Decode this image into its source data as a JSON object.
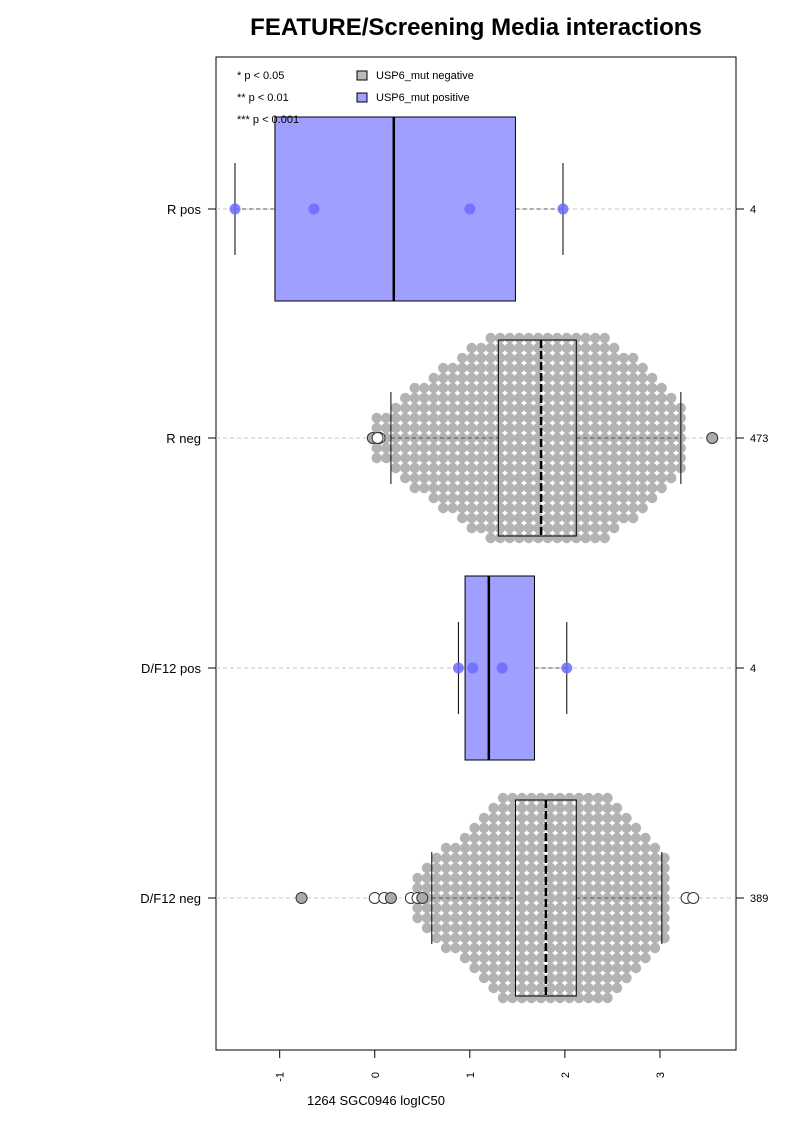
{
  "chart_data": {
    "type": "boxplot-beeswarm",
    "title": "FEATURE/Screening Media interactions",
    "xlabel": "1264 SGC0946 logIC50",
    "ylabel": "",
    "xlim": [
      -1.67,
      3.8
    ],
    "x_ticks": [
      -1,
      0,
      1,
      2,
      3
    ],
    "x_tick_labels": [
      "-1",
      "0",
      "1",
      "2",
      "3"
    ],
    "orientation": "horizontal",
    "grid": "dashed horizontal line through each group",
    "significance_legend": [
      "* p < 0.05",
      "** p < 0.01",
      "*** p < 0.001"
    ],
    "legend": [
      {
        "label": "USP6_mut negative",
        "color": "#bbbbbb"
      },
      {
        "label": "USP6_mut positive",
        "color": "#9f9fff"
      }
    ],
    "legend_position": "top-left",
    "groups": [
      {
        "label": "R pos",
        "count": "4",
        "mutation": "positive",
        "box": {
          "q1": -1.05,
          "median": 0.2,
          "q3": 1.48,
          "whisker_low": -1.47,
          "whisker_high": 1.98
        },
        "points": [
          -1.47,
          -0.64,
          1.0,
          1.98
        ],
        "outliers": []
      },
      {
        "label": "R neg",
        "count": "473",
        "mutation": "negative",
        "box": {
          "q1": 1.3,
          "median": 1.75,
          "q3": 2.12,
          "whisker_low": 0.17,
          "whisker_high": 3.22
        },
        "points": [],
        "outliers": [
          -0.02,
          0.05,
          0.03,
          3.55
        ]
      },
      {
        "label": "D/F12 pos",
        "count": "4",
        "mutation": "positive",
        "box": {
          "q1": 0.95,
          "median": 1.2,
          "q3": 1.68,
          "whisker_low": 0.88,
          "whisker_high": 2.02
        },
        "points": [
          0.88,
          1.03,
          1.34,
          2.02
        ],
        "outliers": []
      },
      {
        "label": "D/F12 neg",
        "count": "389",
        "mutation": "negative",
        "box": {
          "q1": 1.48,
          "median": 1.8,
          "q3": 2.12,
          "whisker_low": 0.6,
          "whisker_high": 3.02
        },
        "points": [],
        "outliers": [
          -0.77,
          0.0,
          0.1,
          0.17,
          0.38,
          0.45,
          0.5,
          3.28,
          3.35
        ]
      }
    ]
  },
  "colors": {
    "positive_fill": "#9f9fff",
    "positive_point": "#6b6bff",
    "negative_fill": "#bbbbbb",
    "negative_point": "#b3b3b3",
    "negative_outlier": "#aaaaaa",
    "gridline": "#c8c8c8"
  }
}
